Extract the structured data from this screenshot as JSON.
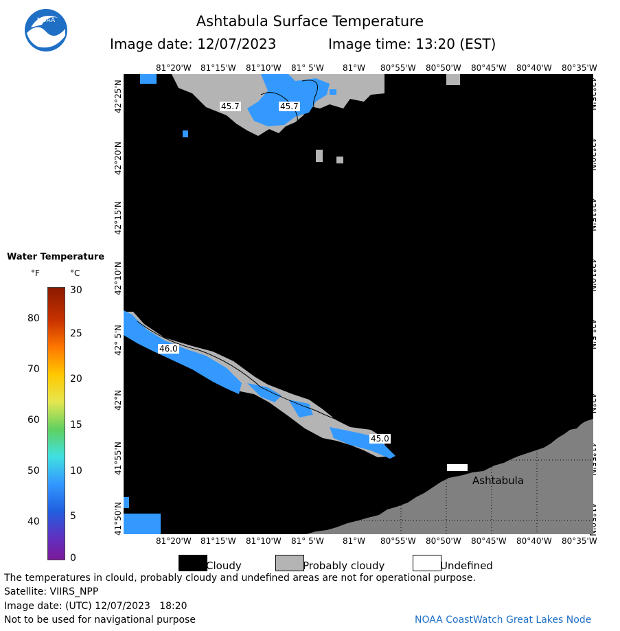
{
  "header": {
    "title": "Ashtabula Surface Temperature",
    "image_date": "Image date: 12/07/2023",
    "image_time": "Image time: 13:20 (EST)"
  },
  "logo": {
    "text": "NOAA"
  },
  "map": {
    "lon_labels": [
      "81°20'W",
      "81°15'W",
      "81°10'W",
      "81° 5'W",
      "81°W",
      "80°55'W",
      "80°50'W",
      "80°45'W",
      "80°40'W",
      "80°35'W"
    ],
    "lat_labels": [
      "42°25'N",
      "42°20'N",
      "42°15'N",
      "42°10'N",
      "42° 5'N",
      "42°N",
      "41°55'N",
      "41°50'N"
    ],
    "place_label": "Ashtabula",
    "contour_labels": [
      "45.7",
      "45.7",
      "46.0",
      "45.0"
    ],
    "colors": {
      "land": "#808080",
      "cloud": "#000000",
      "probably_cloudy": "#b4b4b4",
      "water": "#3399ff"
    }
  },
  "legend": {
    "title": "Water Temperature",
    "unit_f": "°F",
    "unit_c": "°C",
    "f_ticks": [
      "80",
      "70",
      "60",
      "50",
      "40"
    ],
    "c_ticks": [
      "30",
      "25",
      "20",
      "15",
      "10",
      "5",
      "0"
    ]
  },
  "key": {
    "cloudy": "Cloudy",
    "probably_cloudy": "Probably cloudy",
    "undefined": "Undefined"
  },
  "footer": {
    "note": "The temperatures in clould, probably cloudy and undefined areas are not for operational purpose.",
    "satellite": "Satellite: VIIRS_NPP",
    "utc_date": "Image date: (UTC) 12/07/2023   18:20",
    "nav_warning": "Not to be used for navigational purpose",
    "credit": "NOAA CoastWatch Great Lakes Node"
  }
}
